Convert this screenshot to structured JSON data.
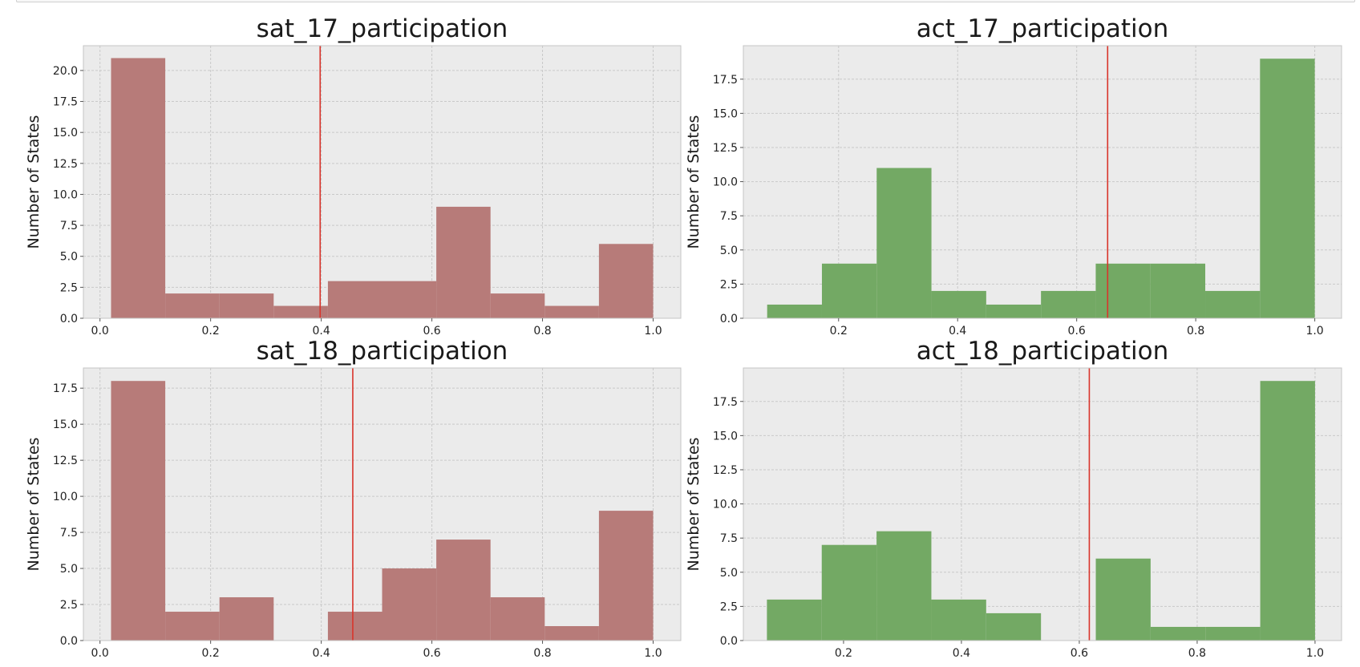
{
  "chart_data": [
    {
      "type": "bar",
      "title": "sat_17_participation",
      "xlabel": "",
      "ylabel": "Number of States",
      "color": "#b77b79",
      "mean_line_color": "#d9342b",
      "mean": 0.398,
      "xlim": [
        -0.03,
        1.05
      ],
      "ylim": [
        0,
        22
      ],
      "xticks": [
        0.0,
        0.2,
        0.4,
        0.6,
        0.8,
        1.0
      ],
      "xtick_labels": [
        "0.0",
        "0.2",
        "0.4",
        "0.6",
        "0.8",
        "1.0"
      ],
      "yticks": [
        0,
        2.5,
        5,
        7.5,
        10,
        12.5,
        15,
        17.5,
        20
      ],
      "ytick_labels": [
        "0.0",
        "2.5",
        "5.0",
        "7.5",
        "10.0",
        "12.5",
        "15.0",
        "17.5",
        "20.0"
      ],
      "bin_edges": [
        0.02,
        0.118,
        0.216,
        0.314,
        0.412,
        0.51,
        0.608,
        0.706,
        0.804,
        0.902,
        1.0
      ],
      "values": [
        21,
        2,
        2,
        1,
        3,
        3,
        9,
        2,
        1,
        6
      ],
      "grid": true
    },
    {
      "type": "bar",
      "title": "act_17_participation",
      "xlabel": "",
      "ylabel": "Number of States",
      "color": "#73a964",
      "mean_line_color": "#d9342b",
      "mean": 0.652,
      "xlim": [
        0.04,
        1.045
      ],
      "ylim": [
        0,
        19.95
      ],
      "xticks": [
        0.2,
        0.4,
        0.6,
        0.8,
        1.0
      ],
      "xtick_labels": [
        "0.2",
        "0.4",
        "0.6",
        "0.8",
        "1.0"
      ],
      "yticks": [
        0,
        2.5,
        5,
        7.5,
        10,
        12.5,
        15,
        17.5
      ],
      "ytick_labels": [
        "0.0",
        "2.5",
        "5.0",
        "7.5",
        "10.0",
        "12.5",
        "15.0",
        "17.5"
      ],
      "bin_edges": [
        0.08,
        0.172,
        0.264,
        0.356,
        0.448,
        0.54,
        0.632,
        0.724,
        0.816,
        0.908,
        1.0
      ],
      "values": [
        1,
        4,
        11,
        2,
        1,
        2,
        4,
        4,
        2,
        19
      ],
      "grid": true
    },
    {
      "type": "bar",
      "title": "sat_18_participation",
      "xlabel": "",
      "ylabel": "Number of States",
      "color": "#b77b79",
      "mean_line_color": "#d9342b",
      "mean": 0.457,
      "xlim": [
        -0.03,
        1.05
      ],
      "ylim": [
        0,
        18.9
      ],
      "xticks": [
        0.0,
        0.2,
        0.4,
        0.6,
        0.8,
        1.0
      ],
      "xtick_labels": [
        "0.0",
        "0.2",
        "0.4",
        "0.6",
        "0.8",
        "1.0"
      ],
      "yticks": [
        0,
        2.5,
        5,
        7.5,
        10,
        12.5,
        15,
        17.5
      ],
      "ytick_labels": [
        "0.0",
        "2.5",
        "5.0",
        "7.5",
        "10.0",
        "12.5",
        "15.0",
        "17.5"
      ],
      "bin_edges": [
        0.02,
        0.118,
        0.216,
        0.314,
        0.412,
        0.51,
        0.608,
        0.706,
        0.804,
        0.902,
        1.0
      ],
      "values": [
        18,
        2,
        3,
        0,
        2,
        5,
        7,
        3,
        1,
        9
      ],
      "grid": true
    },
    {
      "type": "bar",
      "title": "act_18_participation",
      "xlabel": "",
      "ylabel": "Number of States",
      "color": "#73a964",
      "mean_line_color": "#d9342b",
      "mean": 0.617,
      "xlim": [
        0.03,
        1.045
      ],
      "ylim": [
        0,
        19.95
      ],
      "xticks": [
        0.2,
        0.4,
        0.6,
        0.8,
        1.0
      ],
      "xtick_labels": [
        "0.2",
        "0.4",
        "0.6",
        "0.8",
        "1.0"
      ],
      "yticks": [
        0,
        2.5,
        5,
        7.5,
        10,
        12.5,
        15,
        17.5
      ],
      "ytick_labels": [
        "0.0",
        "2.5",
        "5.0",
        "7.5",
        "10.0",
        "12.5",
        "15.0",
        "17.5"
      ],
      "bin_edges": [
        0.07,
        0.163,
        0.256,
        0.349,
        0.442,
        0.535,
        0.628,
        0.721,
        0.814,
        0.907,
        1.0
      ],
      "values": [
        3,
        7,
        8,
        3,
        2,
        0,
        6,
        1,
        1,
        19
      ],
      "grid": true
    }
  ]
}
